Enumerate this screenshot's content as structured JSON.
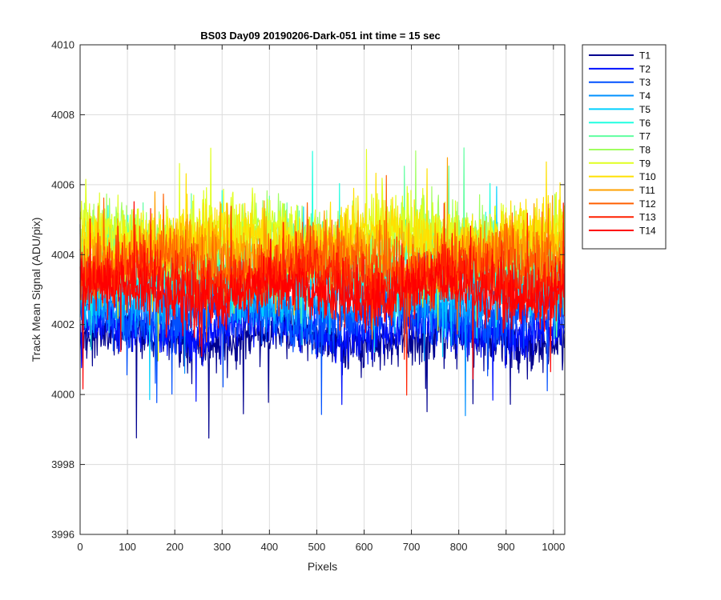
{
  "chart_data": {
    "type": "line",
    "title": "BS03 Day09 20190206-Dark-051 int time = 15 sec",
    "xlabel": "Pixels",
    "ylabel": "Track Mean Signal (ADU/pix)",
    "xlim": [
      0,
      1024
    ],
    "ylim": [
      3996,
      4010
    ],
    "xticks": [
      0,
      100,
      200,
      300,
      400,
      500,
      600,
      700,
      800,
      900,
      1000
    ],
    "yticks": [
      3996,
      3998,
      4000,
      4002,
      4004,
      4006,
      4008,
      4010
    ],
    "grid": true,
    "legend_position": "outside-top-right",
    "points_per_series": 1024,
    "series": [
      {
        "name": "T1",
        "color": "#00008F",
        "mean": 4001.6,
        "noise": 0.7
      },
      {
        "name": "T2",
        "color": "#0010FF",
        "mean": 4001.9,
        "noise": 0.7
      },
      {
        "name": "T3",
        "color": "#0050FF",
        "mean": 4002.3,
        "noise": 0.8
      },
      {
        "name": "T4",
        "color": "#0090FF",
        "mean": 4002.7,
        "noise": 0.8
      },
      {
        "name": "T5",
        "color": "#00D0FF",
        "mean": 4003.2,
        "noise": 0.9
      },
      {
        "name": "T6",
        "color": "#20FFE0",
        "mean": 4003.6,
        "noise": 0.9
      },
      {
        "name": "T7",
        "color": "#60FFA0",
        "mean": 4004.0,
        "noise": 0.9
      },
      {
        "name": "T8",
        "color": "#A0FF60",
        "mean": 4004.4,
        "noise": 0.9
      },
      {
        "name": "T9",
        "color": "#E0FF20",
        "mean": 4004.6,
        "noise": 0.9
      },
      {
        "name": "T10",
        "color": "#FFE000",
        "mean": 4004.4,
        "noise": 0.9
      },
      {
        "name": "T11",
        "color": "#FFA000",
        "mean": 4004.0,
        "noise": 0.9
      },
      {
        "name": "T12",
        "color": "#FF6000",
        "mean": 4003.7,
        "noise": 0.9
      },
      {
        "name": "T13",
        "color": "#FF2000",
        "mean": 4003.3,
        "noise": 0.9
      },
      {
        "name": "T14",
        "color": "#FF0000",
        "mean": 4002.9,
        "noise": 0.8
      }
    ]
  }
}
